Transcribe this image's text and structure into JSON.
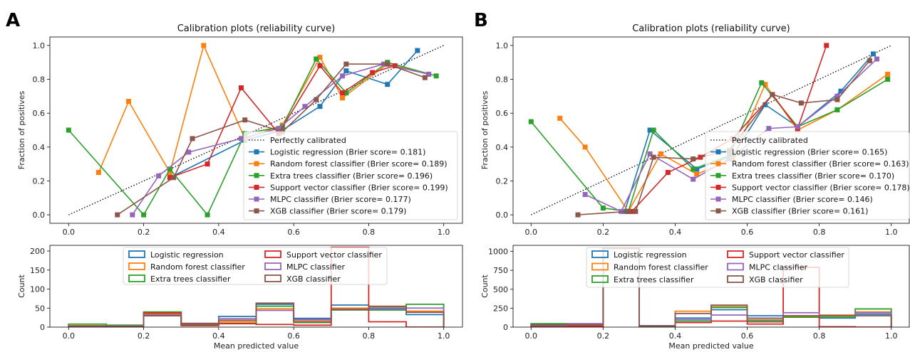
{
  "figure": {
    "panels": [
      "A",
      "B"
    ]
  },
  "chart_data": [
    {
      "type": "line",
      "title": "Calibration plots  (reliability curve)",
      "xlabel": "",
      "ylabel": "Fraction of positives",
      "xlim": [
        -0.05,
        1.05
      ],
      "ylim": [
        -0.05,
        1.05
      ],
      "xticks": [
        0.0,
        0.2,
        0.4,
        0.6,
        0.8,
        1.0
      ],
      "yticks": [
        0.0,
        0.2,
        0.4,
        0.6,
        0.8,
        1.0
      ],
      "legend_position": "center-right",
      "reference": {
        "name": "Perfectly calibrated",
        "x": [
          0,
          1
        ],
        "y": [
          0,
          1
        ]
      },
      "series": [
        {
          "name": "Logistic regression (Brier score= 0.181)",
          "color": "#1f77b4",
          "x": [
            0.27,
            0.47,
            0.57,
            0.67,
            0.74,
            0.85,
            0.93
          ],
          "y": [
            0.22,
            0.44,
            0.5,
            0.64,
            0.85,
            0.77,
            0.97
          ]
        },
        {
          "name": "Random forest classifier (Brier score= 0.189)",
          "color": "#ff7f0e",
          "x": [
            0.08,
            0.16,
            0.27,
            0.36,
            0.47,
            0.57,
            0.67,
            0.73,
            0.85,
            0.96
          ],
          "y": [
            0.25,
            0.67,
            0.25,
            1.0,
            0.45,
            0.53,
            0.93,
            0.69,
            0.89,
            0.83
          ]
        },
        {
          "name": "Extra trees classifier (Brier score= 0.196)",
          "color": "#2ca02c",
          "x": [
            0.0,
            0.2,
            0.27,
            0.37,
            0.47,
            0.57,
            0.66,
            0.74,
            0.85,
            0.98
          ],
          "y": [
            0.5,
            0.0,
            0.27,
            0.0,
            0.48,
            0.52,
            0.92,
            0.72,
            0.9,
            0.82
          ]
        },
        {
          "name": "Support vector classifier (Brier score= 0.199)",
          "color": "#d62728",
          "x": [
            0.27,
            0.37,
            0.46,
            0.56,
            0.67,
            0.73,
            0.81,
            0.87
          ],
          "y": [
            0.22,
            0.3,
            0.75,
            0.48,
            0.88,
            0.72,
            0.84,
            0.88
          ]
        },
        {
          "name": "MLPC classifier (Brier score= 0.177)",
          "color": "#9467bd",
          "x": [
            0.17,
            0.24,
            0.32,
            0.46,
            0.56,
            0.63,
            0.73,
            0.84,
            0.96
          ],
          "y": [
            0.0,
            0.23,
            0.37,
            0.45,
            0.51,
            0.64,
            0.82,
            0.89,
            0.83
          ]
        },
        {
          "name": "XGB classifier (Brier score= 0.179)",
          "color": "#8c564b",
          "x": [
            0.13,
            0.28,
            0.33,
            0.47,
            0.57,
            0.66,
            0.74,
            0.85,
            0.95
          ],
          "y": [
            0.0,
            0.22,
            0.45,
            0.56,
            0.49,
            0.68,
            0.89,
            0.89,
            0.81
          ]
        }
      ]
    },
    {
      "type": "histogram",
      "title": "",
      "xlabel": "Mean predicted value",
      "ylabel": "Count",
      "xlim": [
        -0.05,
        1.05
      ],
      "ylim": [
        0,
        215
      ],
      "xticks": [
        0.0,
        0.2,
        0.4,
        0.6,
        0.8,
        1.0
      ],
      "yticks": [
        0,
        50,
        100,
        150,
        200
      ],
      "bins": [
        0.0,
        0.1,
        0.2,
        0.3,
        0.4,
        0.5,
        0.6,
        0.7,
        0.8,
        0.9,
        1.0
      ],
      "legend_position": "top-center",
      "legend_columns": 2,
      "series": [
        {
          "name": "Logistic regression",
          "color": "#1f77b4",
          "values": [
            2,
            3,
            30,
            7,
            28,
            60,
            23,
            58,
            50,
            33
          ]
        },
        {
          "name": "Random forest classifier",
          "color": "#ff7f0e",
          "values": [
            4,
            5,
            35,
            9,
            14,
            48,
            18,
            50,
            55,
            42
          ]
        },
        {
          "name": "Extra trees classifier",
          "color": "#2ca02c",
          "values": [
            8,
            5,
            40,
            5,
            10,
            55,
            12,
            45,
            45,
            60
          ]
        },
        {
          "name": "Support vector classifier",
          "color": "#d62728",
          "values": [
            1,
            3,
            37,
            4,
            9,
            7,
            5,
            210,
            14,
            0
          ]
        },
        {
          "name": "MLPC classifier",
          "color": "#9467bd",
          "values": [
            2,
            3,
            32,
            10,
            22,
            44,
            20,
            46,
            48,
            50
          ]
        },
        {
          "name": "XGB classifier",
          "color": "#8c564b",
          "values": [
            3,
            2,
            30,
            9,
            18,
            63,
            14,
            47,
            54,
            39
          ]
        }
      ]
    },
    {
      "type": "line",
      "title": "Calibration plots  (reliability curve)",
      "xlabel": "",
      "ylabel": "Fraction of positives",
      "xlim": [
        -0.05,
        1.05
      ],
      "ylim": [
        -0.05,
        1.05
      ],
      "xticks": [
        0.0,
        0.2,
        0.4,
        0.6,
        0.8,
        1.0
      ],
      "yticks": [
        0.0,
        0.2,
        0.4,
        0.6,
        0.8,
        1.0
      ],
      "legend_position": "center-right",
      "reference": {
        "name": "Perfectly calibrated",
        "x": [
          0,
          1
        ],
        "y": [
          0,
          1
        ]
      },
      "series": [
        {
          "name": "Logistic regression (Brier score= 0.165)",
          "color": "#1f77b4",
          "x": [
            0.26,
            0.33,
            0.46,
            0.56,
            0.65,
            0.74,
            0.86,
            0.95
          ],
          "y": [
            0.02,
            0.5,
            0.27,
            0.35,
            0.65,
            0.52,
            0.73,
            0.95
          ]
        },
        {
          "name": "Random forest classifier (Brier score= 0.163)",
          "color": "#ff7f0e",
          "x": [
            0.08,
            0.15,
            0.27,
            0.36,
            0.46,
            0.56,
            0.65,
            0.74,
            0.85,
            0.99
          ],
          "y": [
            0.57,
            0.4,
            0.02,
            0.36,
            0.24,
            0.33,
            0.77,
            0.5,
            0.62,
            0.83
          ]
        },
        {
          "name": "Extra trees classifier (Brier score= 0.170)",
          "color": "#2ca02c",
          "x": [
            0.0,
            0.2,
            0.27,
            0.34,
            0.45,
            0.55,
            0.64,
            0.74,
            0.85,
            0.99
          ],
          "y": [
            0.55,
            0.04,
            0.02,
            0.5,
            0.27,
            0.35,
            0.78,
            0.52,
            0.62,
            0.8
          ]
        },
        {
          "name": "Support vector classifier (Brier score= 0.178)",
          "color": "#d62728",
          "x": [
            0.28,
            0.38,
            0.47,
            0.56,
            0.67,
            0.74,
            0.82
          ],
          "y": [
            0.02,
            0.25,
            0.34,
            0.45,
            0.71,
            0.51,
            1.0
          ]
        },
        {
          "name": "MLPC classifier (Brier score= 0.146)",
          "color": "#9467bd",
          "x": [
            0.15,
            0.25,
            0.33,
            0.45,
            0.55,
            0.66,
            0.74,
            0.85,
            0.96
          ],
          "y": [
            0.12,
            0.02,
            0.36,
            0.21,
            0.33,
            0.51,
            0.52,
            0.7,
            0.92
          ]
        },
        {
          "name": "XGB classifier (Brier score= 0.161)",
          "color": "#8c564b",
          "x": [
            0.13,
            0.27,
            0.29,
            0.34,
            0.45,
            0.55,
            0.67,
            0.75,
            0.85,
            0.94
          ],
          "y": [
            0.0,
            0.02,
            0.02,
            0.34,
            0.33,
            0.38,
            0.71,
            0.66,
            0.68,
            0.91
          ]
        }
      ]
    },
    {
      "type": "histogram",
      "title": "",
      "xlabel": "Mean predicted value",
      "ylabel": "Count",
      "xlim": [
        -0.05,
        1.05
      ],
      "ylim": [
        0,
        1080
      ],
      "xticks": [
        0.0,
        0.2,
        0.4,
        0.6,
        0.8,
        1.0
      ],
      "yticks": [
        0,
        250,
        500,
        750,
        1000
      ],
      "bins": [
        0.0,
        0.1,
        0.2,
        0.3,
        0.4,
        0.5,
        0.6,
        0.7,
        0.8,
        0.9,
        1.0
      ],
      "legend_position": "top-center",
      "legend_columns": 2,
      "series": [
        {
          "name": "Logistic regression",
          "color": "#1f77b4",
          "values": [
            20,
            30,
            1040,
            15,
            120,
            230,
            150,
            140,
            120,
            170
          ]
        },
        {
          "name": "Random forest classifier",
          "color": "#ff7f0e",
          "values": [
            40,
            25,
            1040,
            10,
            210,
            270,
            110,
            140,
            160,
            200
          ]
        },
        {
          "name": "Extra trees classifier",
          "color": "#2ca02c",
          "values": [
            45,
            30,
            1040,
            10,
            80,
            260,
            90,
            130,
            130,
            240
          ]
        },
        {
          "name": "Support vector classifier",
          "color": "#d62728",
          "values": [
            5,
            10,
            1040,
            20,
            60,
            80,
            40,
            790,
            5,
            0
          ]
        },
        {
          "name": "MLPC classifier",
          "color": "#9467bd",
          "values": [
            25,
            45,
            1040,
            20,
            100,
            160,
            120,
            190,
            150,
            190
          ]
        },
        {
          "name": "XGB classifier",
          "color": "#8c564b",
          "values": [
            30,
            30,
            1040,
            15,
            180,
            290,
            70,
            150,
            150,
            150
          ]
        }
      ]
    }
  ]
}
